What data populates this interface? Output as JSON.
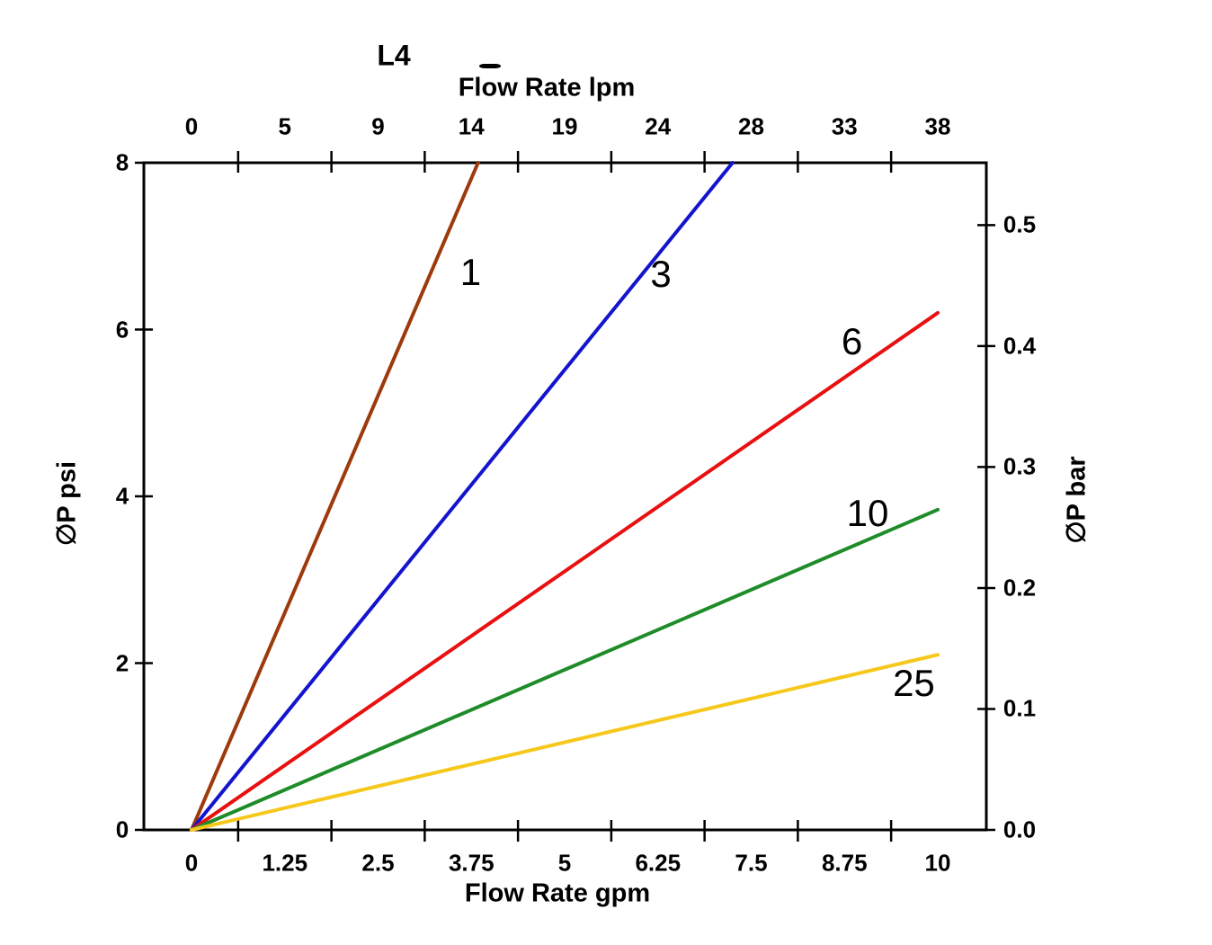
{
  "chart_data": {
    "type": "line",
    "title": "L4",
    "top_axis": {
      "label": "Flow Rate lpm",
      "tick_labels": [
        "0",
        "5",
        "9",
        "14",
        "19",
        "24",
        "28",
        "33",
        "38"
      ]
    },
    "bottom_axis": {
      "label": "Flow Rate gpm",
      "tick_labels": [
        "0",
        "1.25",
        "2.5",
        "3.75",
        "5",
        "6.25",
        "7.5",
        "8.75",
        "10"
      ],
      "tick_values_gpm": [
        0,
        1.25,
        2.5,
        3.75,
        5,
        6.25,
        7.5,
        8.75,
        10
      ]
    },
    "left_axis": {
      "label": "∅P psi",
      "tick_labels": [
        "0",
        "2",
        "4",
        "6",
        "8"
      ],
      "tick_values_psi": [
        0,
        2,
        4,
        6,
        8
      ],
      "range_psi": [
        0,
        8
      ]
    },
    "right_axis": {
      "label": "∅P bar",
      "tick_labels": [
        "0.0",
        "0.1",
        "0.2",
        "0.3",
        "0.4",
        "0.5"
      ],
      "tick_values_bar": [
        0,
        0.1,
        0.2,
        0.3,
        0.4,
        0.5
      ]
    },
    "series": [
      {
        "name": "1",
        "color": "#9C3A0C",
        "points_gpm_psi": [
          [
            0,
            0
          ],
          [
            3.84,
            8
          ]
        ],
        "label_at_gpm_psi": [
          3.74,
          6.68
        ]
      },
      {
        "name": "3",
        "color": "#1414CE",
        "points_gpm_psi": [
          [
            0,
            0
          ],
          [
            7.25,
            8
          ]
        ],
        "label_at_gpm_psi": [
          6.29,
          6.66
        ]
      },
      {
        "name": "6",
        "color": "#E81010",
        "points_gpm_psi": [
          [
            0,
            0
          ],
          [
            10,
            6.2
          ]
        ],
        "label_at_gpm_psi": [
          8.85,
          5.85
        ]
      },
      {
        "name": "10",
        "color": "#1E8C28",
        "points_gpm_psi": [
          [
            0,
            0
          ],
          [
            10,
            3.84
          ]
        ],
        "label_at_gpm_psi": [
          9.06,
          3.8
        ]
      },
      {
        "name": "25",
        "color": "#F6C81C",
        "points_gpm_psi": [
          [
            0,
            0
          ],
          [
            10,
            2.1
          ]
        ],
        "label_at_gpm_psi": [
          9.68,
          1.76
        ]
      }
    ]
  }
}
